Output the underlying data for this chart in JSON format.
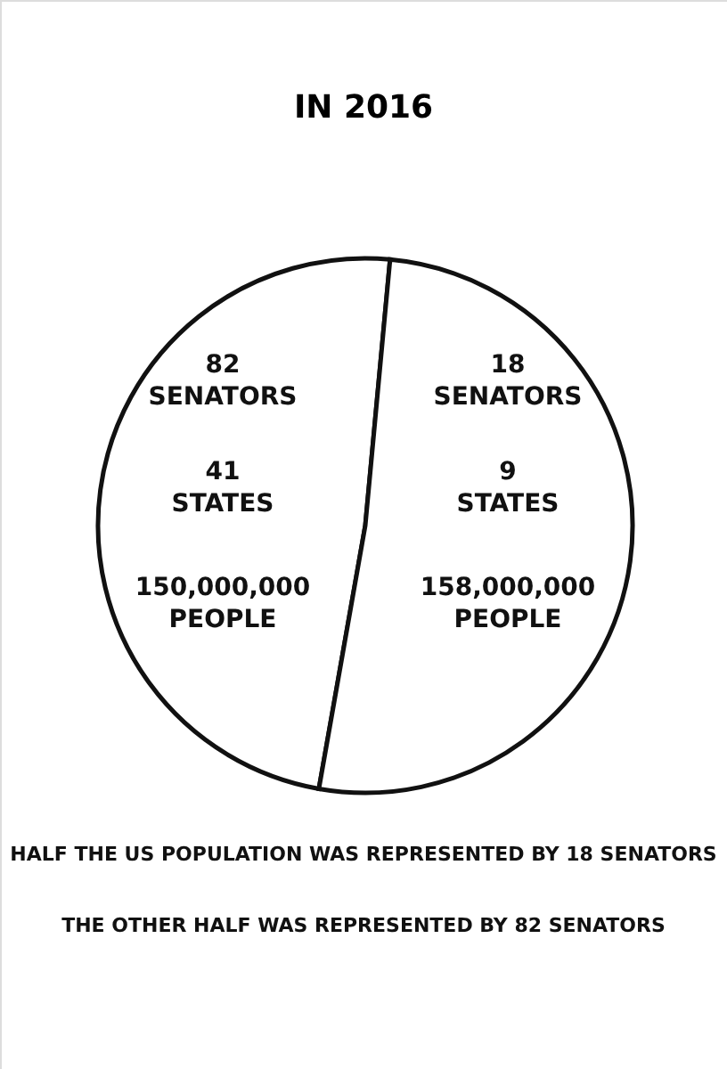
{
  "chart_data": {
    "type": "pie",
    "title": "IN 2016",
    "categories": [
      "82 SENATORS",
      "18 SENATORS"
    ],
    "values": [
      150000000,
      158000000
    ],
    "colors": [
      "#ffffff",
      "#ffffff"
    ],
    "value_labels": [
      "150,000,000 PEOPLE",
      "158,000,000 PEOPLE"
    ],
    "annotations": [
      "41 STATES",
      "9 STATES",
      "HALF THE US POPULATION WAS REPRESENTED BY 18 SENATORS",
      "THE OTHER HALF WAS REPRESENTED BY 82 SENATORS"
    ],
    "legend": false
  }
}
